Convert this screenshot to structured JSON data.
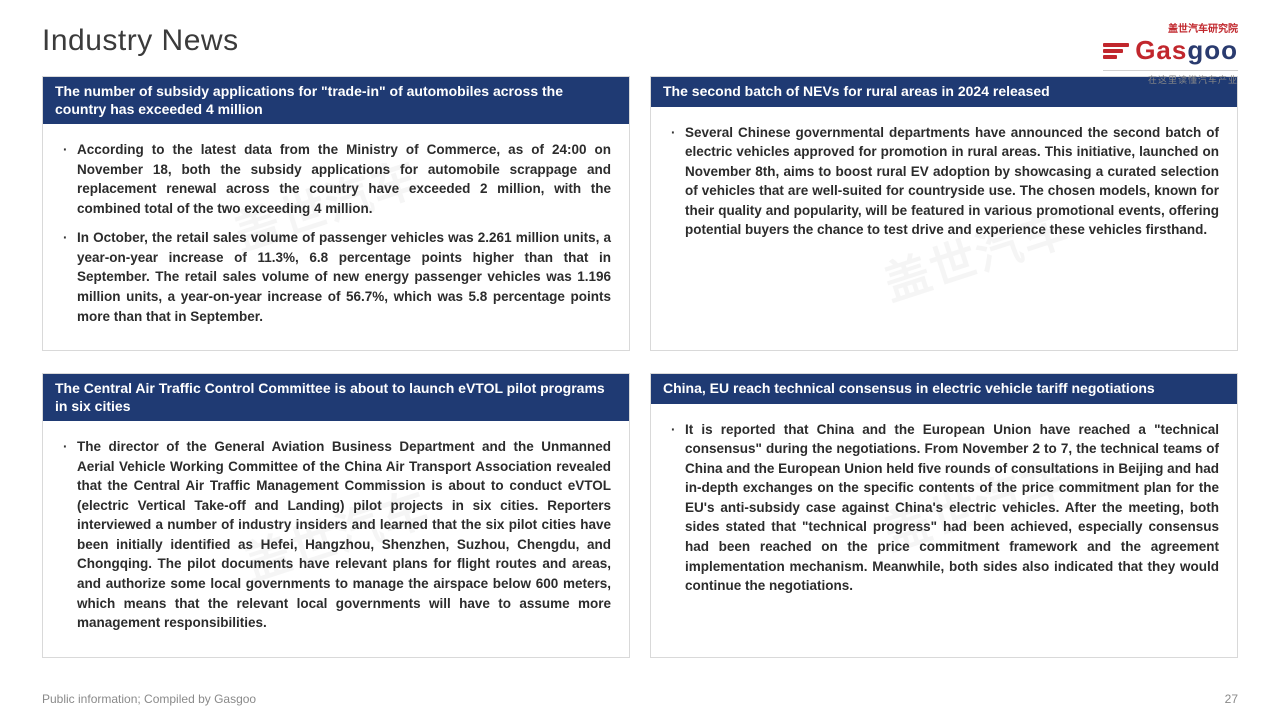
{
  "title": "Industry News",
  "logo": {
    "brand_red": "Gas",
    "brand_blue": "goo",
    "cn": "盖世汽车研究院",
    "tagline": "在这里读懂汽车产业",
    "brand_color_red": "#c1272d",
    "brand_color_blue": "#2a3b6f"
  },
  "colors": {
    "header_bg": "#1f3a73",
    "header_text": "#ffffff",
    "card_border": "#d9d9d9",
    "body_text": "#2c2c2c",
    "footer_text": "#8a8a8a"
  },
  "cards": [
    {
      "headline": "The number of subsidy applications for \"trade-in\" of automobiles across the country has exceeded 4 million",
      "bullets": [
        "According to the latest data from the Ministry of Commerce, as of 24:00 on November 18, both the subsidy applications for automobile scrappage and replacement renewal across the country have exceeded 2 million, with the combined total of the two exceeding 4 million.",
        "In October, the retail sales volume of passenger vehicles was 2.261 million units, a year-on-year increase of 11.3%, 6.8 percentage points higher than that in September. The retail sales volume of new energy passenger vehicles was 1.196 million units, a year-on-year increase of 56.7%, which was 5.8 percentage points more than that in September."
      ]
    },
    {
      "headline": "The second batch of NEVs for rural areas in 2024 released",
      "bullets": [
        "Several Chinese governmental departments have announced the second batch of electric vehicles approved for promotion in rural areas. This initiative, launched on November 8th, aims to boost rural EV adoption by showcasing a curated selection of vehicles that are well-suited for countryside use. The chosen models, known for their quality and popularity, will be featured in various promotional events, offering potential buyers the chance to test drive and experience these vehicles firsthand."
      ]
    },
    {
      "headline": "The Central Air Traffic Control Committee is about to launch eVTOL pilot programs in six cities",
      "bullets": [
        "The director of the General Aviation Business Department and the Unmanned Aerial Vehicle Working Committee of the China Air Transport Association revealed that the Central Air Traffic Management Commission is about to conduct eVTOL (electric Vertical Take-off and Landing) pilot projects in six cities. Reporters interviewed a number of industry insiders and learned that the six pilot cities have been initially identified as Hefei, Hangzhou, Shenzhen, Suzhou, Chengdu, and Chongqing. The pilot documents have relevant plans for flight routes and areas, and authorize some local governments to manage the airspace below 600 meters, which means that the relevant local governments will have to assume more management responsibilities."
      ]
    },
    {
      "headline": "China, EU reach technical consensus in electric vehicle tariff negotiations",
      "bullets": [
        "It is reported that China and the European Union have reached a \"technical consensus\" during the negotiations. From November 2 to 7, the technical teams of China and the European Union held five rounds of consultations in Beijing and had in-depth exchanges on the specific contents of the price commitment plan for the EU's anti-subsidy case against China's electric vehicles. After the meeting, both sides stated that \"technical progress\" had been achieved, especially consensus had been reached on the price commitment framework and the agreement implementation mechanism. Meanwhile, both sides also indicated that they would continue the negotiations."
      ]
    }
  ],
  "footer": {
    "source": "Public information; Compiled by Gasgoo",
    "page": "27"
  },
  "watermark": "盖世汽车"
}
